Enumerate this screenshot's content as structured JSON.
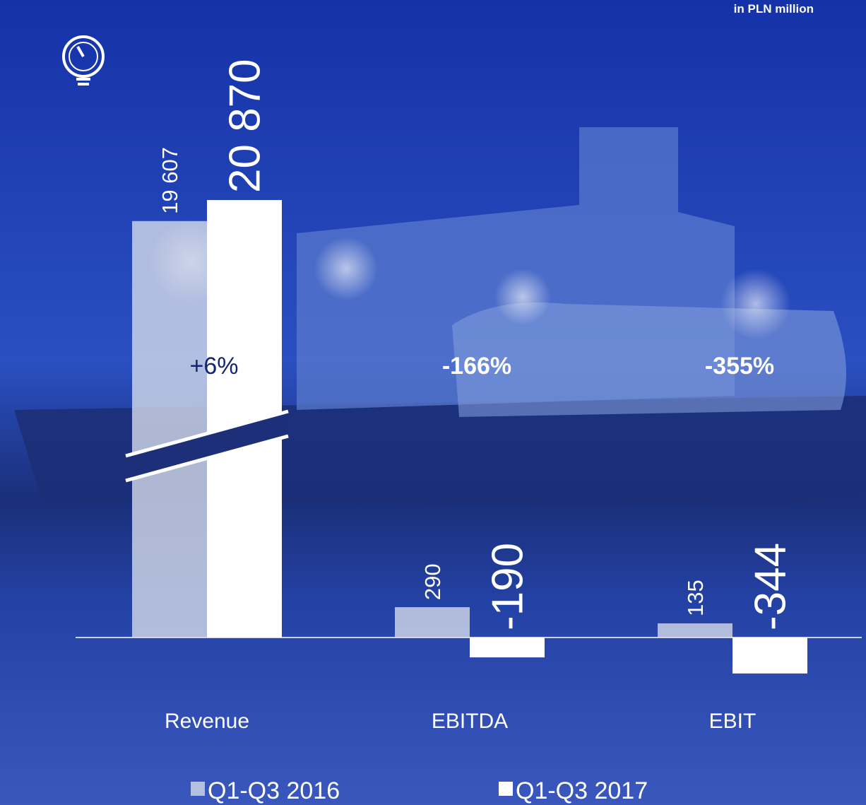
{
  "chart_data": {
    "type": "bar",
    "subtitle": "in PLN million",
    "categories": [
      "Revenue",
      "EBITDA",
      "EBIT"
    ],
    "series": [
      {
        "name": "Q1-Q3 2016",
        "color": "#d4dbea",
        "values": [
          19607,
          290,
          135
        ],
        "value_labels": [
          "19 607",
          "290",
          "135"
        ]
      },
      {
        "name": "Q1-Q3 2017",
        "color": "#ffffff",
        "values": [
          20870,
          -190,
          -344
        ],
        "value_labels": [
          "20 870",
          "-190",
          "-344"
        ]
      }
    ],
    "annotations": [
      "+6%",
      "-166%",
      "-355%"
    ],
    "axis_broken": true
  }
}
